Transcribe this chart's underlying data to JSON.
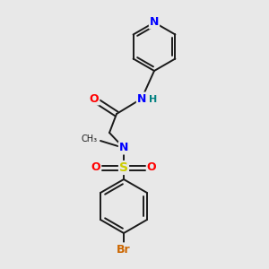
{
  "bg_color": "#e8e8e8",
  "bond_color": "#1a1a1a",
  "atom_colors": {
    "N": "#0000ff",
    "O": "#ff0000",
    "S": "#cccc00",
    "Br": "#cc6600",
    "H": "#008080",
    "C": "#1a1a1a"
  },
  "figsize": [
    3.0,
    3.0
  ],
  "dpi": 100
}
